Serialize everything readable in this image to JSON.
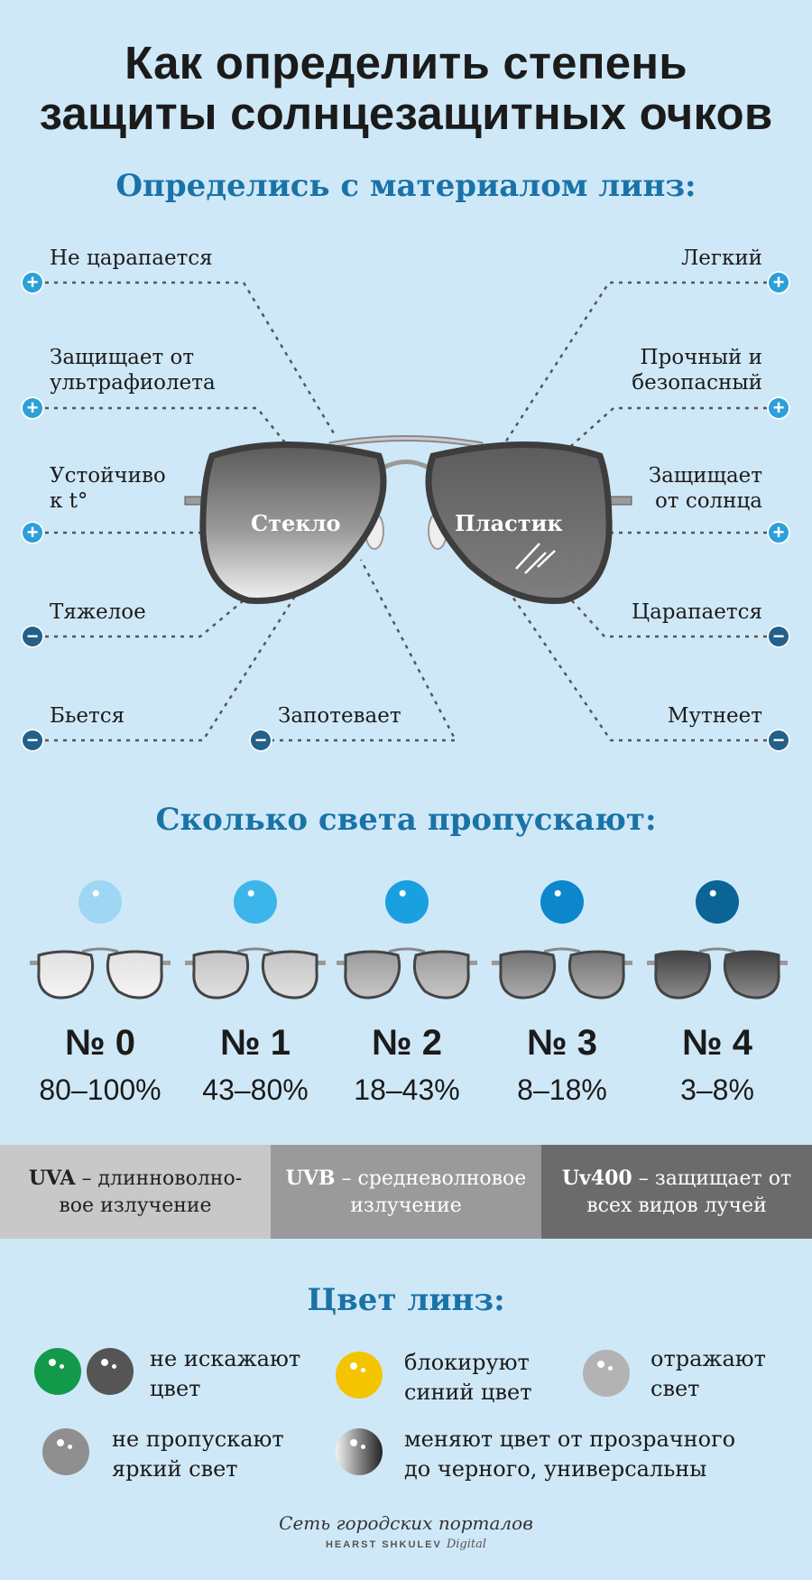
{
  "title": [
    "Как определить степень",
    "защиты солнцезащитных очков"
  ],
  "section1": {
    "heading": "Определись с материалом линз:",
    "glass_label": "Стекло",
    "plastic_label": "Пластик",
    "glass_features": [
      {
        "text": "Не царапается",
        "sign": "+"
      },
      {
        "text": "Защищает от\nультрафиолета",
        "sign": "+"
      },
      {
        "text": "Устойчиво\nк t°",
        "sign": "+"
      },
      {
        "text": "Тяжелое",
        "sign": "−"
      },
      {
        "text": "Бьется",
        "sign": "−"
      },
      {
        "text": "Запотевает",
        "sign": "−"
      }
    ],
    "plastic_features": [
      {
        "text": "Легкий",
        "sign": "+"
      },
      {
        "text": "Прочный и\nбезопасный",
        "sign": "+"
      },
      {
        "text": "Защищает\nот солнца",
        "sign": "+"
      },
      {
        "text": "Царапается",
        "sign": "−"
      },
      {
        "text": "Мутнеет",
        "sign": "−"
      }
    ]
  },
  "section2": {
    "heading": "Сколько света пропускают:",
    "categories": [
      {
        "label": "№ 0",
        "range": "80–100%",
        "dot_color": "#9fd6f3",
        "lens_shade": 0.05
      },
      {
        "label": "№ 1",
        "range": "43–80%",
        "dot_color": "#3cb6ea",
        "lens_shade": 0.2
      },
      {
        "label": "№ 2",
        "range": "18–43%",
        "dot_color": "#1aa0e0",
        "lens_shade": 0.4
      },
      {
        "label": "№ 3",
        "range": "8–18%",
        "dot_color": "#0d86cc",
        "lens_shade": 0.6
      },
      {
        "label": "№ 4",
        "range": "3–8%",
        "dot_color": "#0a6496",
        "lens_shade": 0.85
      }
    ]
  },
  "uv": [
    {
      "name": "UVA",
      "desc": " – длинноволно-",
      "desc2": "вое излучение",
      "bg": "#c8c8c8"
    },
    {
      "name": "UVB",
      "desc": " – средневолновое",
      "desc2": "излучение",
      "bg": "#9a9a9a"
    },
    {
      "name": "Uv400",
      "desc": " – защищает от",
      "desc2": "всех видов лучей",
      "bg": "#6b6b6b"
    }
  ],
  "section3": {
    "heading": "Цвет линз:",
    "items": [
      {
        "line1": "не искажают",
        "line2": "цвет",
        "colors": [
          "#129a4a",
          "#555555"
        ]
      },
      {
        "line1": "блокируют",
        "line2": "синий цвет",
        "colors": [
          "#f4c400"
        ]
      },
      {
        "line1": "отражают",
        "line2": "свет",
        "colors": [
          "#b3b3b3"
        ]
      },
      {
        "line1": "не пропускают",
        "line2": "яркий свет",
        "colors": [
          "#8f8f8f"
        ]
      },
      {
        "line1": "меняют цвет от прозрачного",
        "line2": "до черного, универсальны",
        "colors": [
          "gradient"
        ]
      }
    ]
  },
  "footer": {
    "line1": "Сеть городских порталов",
    "brand": "HEARST SHKULEV",
    "brand2": "Digital"
  }
}
